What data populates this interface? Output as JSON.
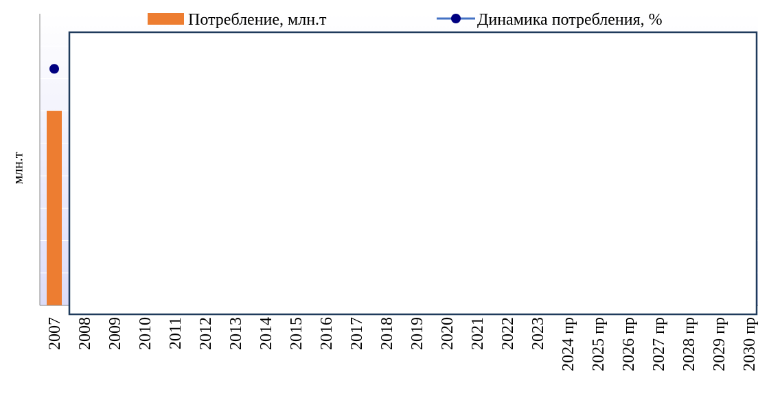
{
  "chart_data": {
    "type": "bar",
    "y_label": "млн.т",
    "categories": [
      "2007",
      "2008",
      "2009",
      "2010",
      "2011",
      "2012",
      "2013",
      "2014",
      "2015",
      "2016",
      "2017",
      "2018",
      "2019",
      "2020",
      "2021",
      "2022",
      "2023",
      "2024 пр",
      "2025 пр",
      "2026 пр",
      "2027 пр",
      "2028 пр",
      "2029 пр",
      "2030 пр"
    ],
    "series": [
      {
        "name": "Потребление, млн.т",
        "type": "bar",
        "color": "#ed7d31",
        "values": [
          6,
          null,
          null,
          null,
          null,
          null,
          null,
          null,
          null,
          null,
          null,
          null,
          null,
          null,
          null,
          null,
          null,
          null,
          null,
          null,
          null,
          null,
          null,
          null
        ]
      },
      {
        "name": "Динамика потребления, %",
        "type": "line",
        "color": "#4472c4",
        "marker_color": "#000080",
        "values": [
          7.3,
          null,
          null,
          null,
          null,
          null,
          null,
          null,
          null,
          null,
          null,
          null,
          null,
          null,
          null,
          null,
          null,
          null,
          null,
          null,
          null,
          null,
          null,
          null
        ]
      }
    ],
    "ylim": [
      0,
      9
    ],
    "yticks": [
      1,
      2,
      3,
      4,
      5,
      6,
      7,
      8
    ],
    "grid": true
  }
}
